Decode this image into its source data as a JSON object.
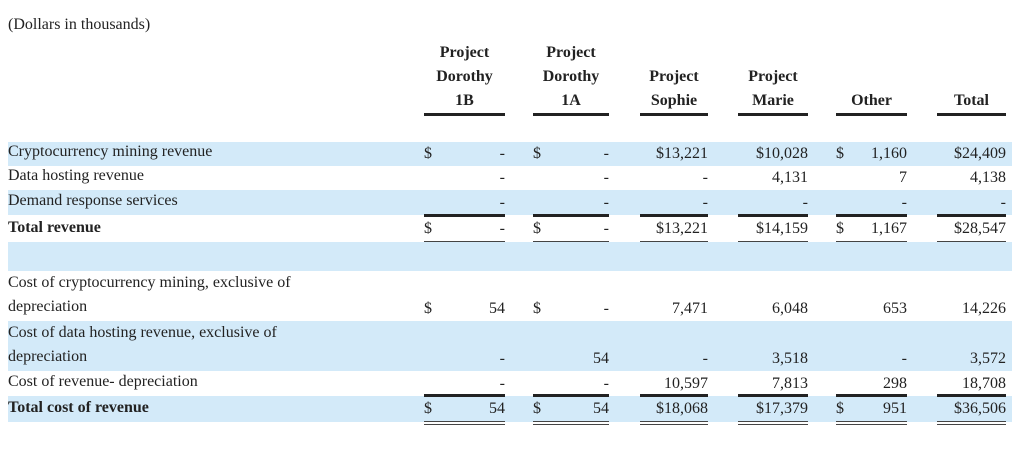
{
  "note": "(Dollars in thousands)",
  "columns": [
    {
      "lines": [
        "Project",
        "Dorothy",
        "1B"
      ]
    },
    {
      "lines": [
        "Project",
        "Dorothy",
        "1A"
      ]
    },
    {
      "lines": [
        "Project",
        "Sophie"
      ]
    },
    {
      "lines": [
        "Project",
        "Marie"
      ]
    },
    {
      "lines": [
        "Other"
      ]
    },
    {
      "lines": [
        "Total"
      ]
    }
  ],
  "rows": [
    {
      "label": [
        "Cryptocurrency mining revenue"
      ],
      "shade": true,
      "cells": [
        [
          "$",
          "-"
        ],
        [
          "$",
          "-"
        ],
        [
          "",
          "$13,221"
        ],
        [
          "",
          "$10,028"
        ],
        [
          "$",
          "1,160"
        ],
        [
          "",
          "$24,409"
        ]
      ]
    },
    {
      "label": [
        "Data hosting revenue"
      ],
      "cells": [
        [
          "",
          "-"
        ],
        [
          "",
          "-"
        ],
        [
          "",
          "-"
        ],
        [
          "",
          "4,131"
        ],
        [
          "",
          "7"
        ],
        [
          "",
          "4,138"
        ]
      ]
    },
    {
      "label": [
        "Demand response services"
      ],
      "shade": true,
      "cells": [
        [
          "",
          "-"
        ],
        [
          "",
          "-"
        ],
        [
          "",
          "-"
        ],
        [
          "",
          "-"
        ],
        [
          "",
          "-"
        ],
        [
          "",
          "-"
        ]
      ]
    },
    {
      "label": [
        "Total revenue"
      ],
      "bold": true,
      "total": true,
      "cells": [
        [
          "$",
          "-"
        ],
        [
          "$",
          "-"
        ],
        [
          "",
          "$13,221"
        ],
        [
          "",
          "$14,159"
        ],
        [
          "$",
          "1,167"
        ],
        [
          "",
          "$28,547"
        ]
      ]
    },
    {
      "label": [],
      "shade": true,
      "cells": []
    },
    {
      "label": [
        "Cost of cryptocurrency mining, exclusive of",
        "depreciation"
      ],
      "cells": [
        [
          "$",
          "54"
        ],
        [
          "$",
          "-"
        ],
        [
          "",
          "7,471"
        ],
        [
          "",
          "6,048"
        ],
        [
          "",
          "653"
        ],
        [
          "",
          "14,226"
        ]
      ]
    },
    {
      "label": [
        "Cost of data hosting revenue, exclusive of",
        "depreciation"
      ],
      "shade": true,
      "cells": [
        [
          "",
          "-"
        ],
        [
          "",
          "54"
        ],
        [
          "",
          "-"
        ],
        [
          "",
          "3,518"
        ],
        [
          "",
          "-"
        ],
        [
          "",
          "3,572"
        ]
      ]
    },
    {
      "label": [
        "Cost of revenue- depreciation"
      ],
      "cells": [
        [
          "",
          "-"
        ],
        [
          "",
          "-"
        ],
        [
          "",
          "10,597"
        ],
        [
          "",
          "7,813"
        ],
        [
          "",
          "298"
        ],
        [
          "",
          "18,708"
        ]
      ]
    },
    {
      "label": [
        "Total cost of revenue"
      ],
      "bold": true,
      "total": true,
      "shade": true,
      "cells": [
        [
          "$",
          "54"
        ],
        [
          "$",
          "54"
        ],
        [
          "",
          "$18,068"
        ],
        [
          "",
          "$17,379"
        ],
        [
          "$",
          "951"
        ],
        [
          "",
          "$36,506"
        ]
      ]
    }
  ]
}
